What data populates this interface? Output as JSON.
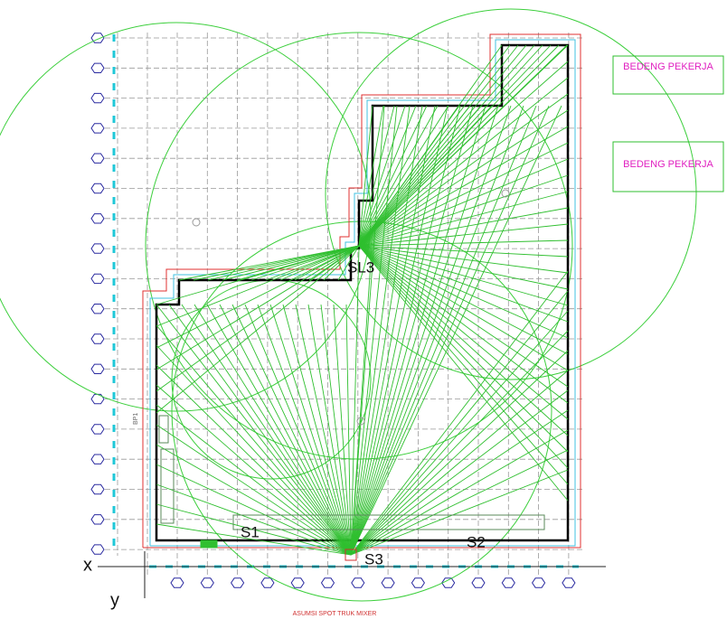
{
  "annotations": {
    "bedeng_1": "BEDENG PEKERJA",
    "bedeng_2": "BEDENG PEKERJA",
    "sl3": "SL3",
    "s1": "S1",
    "s2": "S2",
    "s3": "S3",
    "axis_x": "x",
    "axis_y": "y",
    "truck_spot": "ASUMSI SPOT TRUK MIXER",
    "bp1": "BP1"
  }
}
